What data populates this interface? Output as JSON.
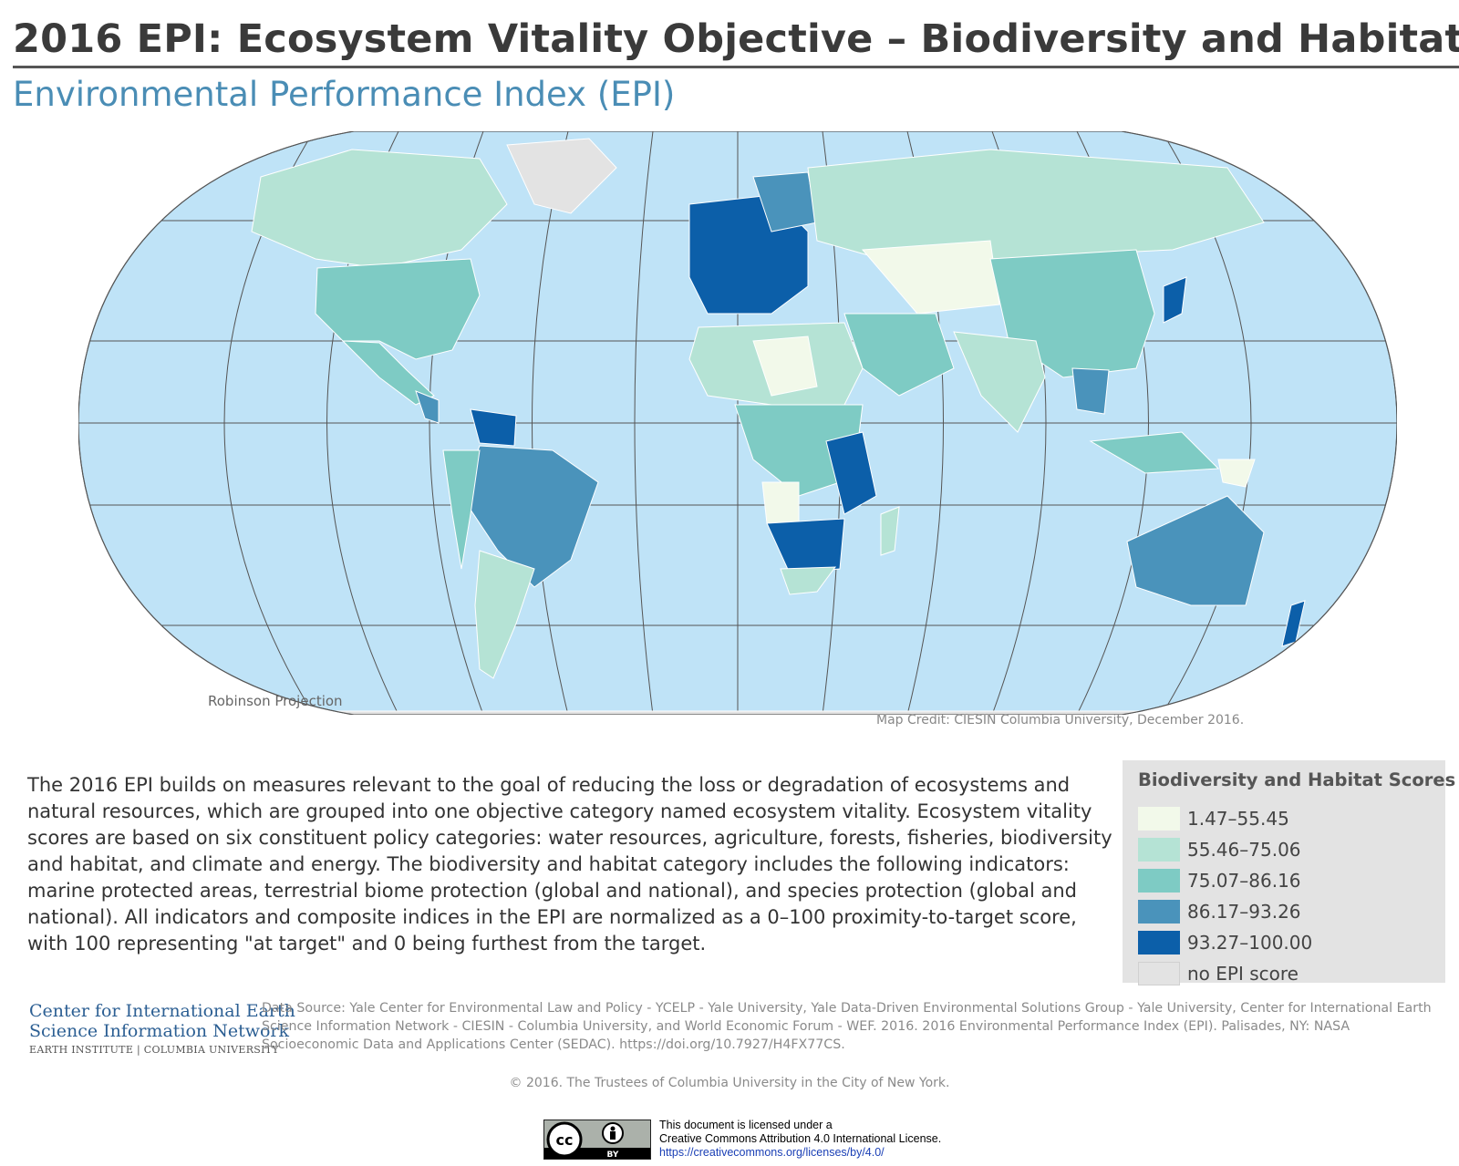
{
  "title": "2016 EPI: Ecosystem Vitality Objective – Biodiversity and Habitat",
  "subtitle": "Environmental Performance Index (EPI)",
  "map": {
    "projection_label": "Robinson Projection",
    "credit": "Map Credit: CIESIN Columbia University, December 2016.",
    "colors": {
      "ocean": "#bfe3f7",
      "graticule": "#555555",
      "no_score": "#e3e3e3"
    }
  },
  "description": "The 2016 EPI builds on measures relevant to the goal of reducing the loss or degradation of ecosystems and natural resources, which are grouped into one objective category named ecosystem vitality. Ecosystem vitality scores are based on six constituent policy categories: water resources, agriculture, forests, fisheries, biodiversity and habitat, and climate and energy. The biodiversity and habitat category includes the following indicators: marine protected areas, terrestrial biome protection (global and national), and species protection (global and national). All indicators and composite indices in the EPI are normalized as a 0–100 proximity-to-target score, with 100 representing \"at target\" and 0 being furthest from the target.",
  "legend": {
    "title": "Biodiversity and Habitat Scores",
    "items": [
      {
        "label": "1.47–55.45",
        "color": "#f2f9ea"
      },
      {
        "label": "55.46–75.06",
        "color": "#b5e3d5"
      },
      {
        "label": "75.07–86.16",
        "color": "#7ecbc4"
      },
      {
        "label": "86.17–93.26",
        "color": "#4a93bb"
      },
      {
        "label": "93.27–100.00",
        "color": "#0c5fa9"
      },
      {
        "label": "no EPI score",
        "color": "#e3e3e3"
      }
    ]
  },
  "org": {
    "line1": "Center for International Earth",
    "line2": "Science Information Network",
    "line3": "EARTH INSTITUTE | COLUMBIA UNIVERSITY"
  },
  "data_source": "Data Source: Yale Center for Environmental Law and Policy - YCELP - Yale University, Yale Data-Driven Environmental Solutions Group - Yale University, Center for International Earth Science Information Network - CIESIN - Columbia University, and World Economic Forum - WEF. 2016. 2016 Environmental Performance Index (EPI). Palisades, NY: NASA Socioeconomic Data and Applications Center (SEDAC). https://doi.org/10.7927/H4FX77CS.",
  "copyright": "© 2016. The Trustees of Columbia University in the City of New York.",
  "license": {
    "line1": "This document is licensed under a",
    "line2": "Creative Commons Attribution 4.0 International License.",
    "link": "https://creativecommons.org/licenses/by/4.0/",
    "badge_cc": "cc",
    "badge_by": "BY"
  }
}
